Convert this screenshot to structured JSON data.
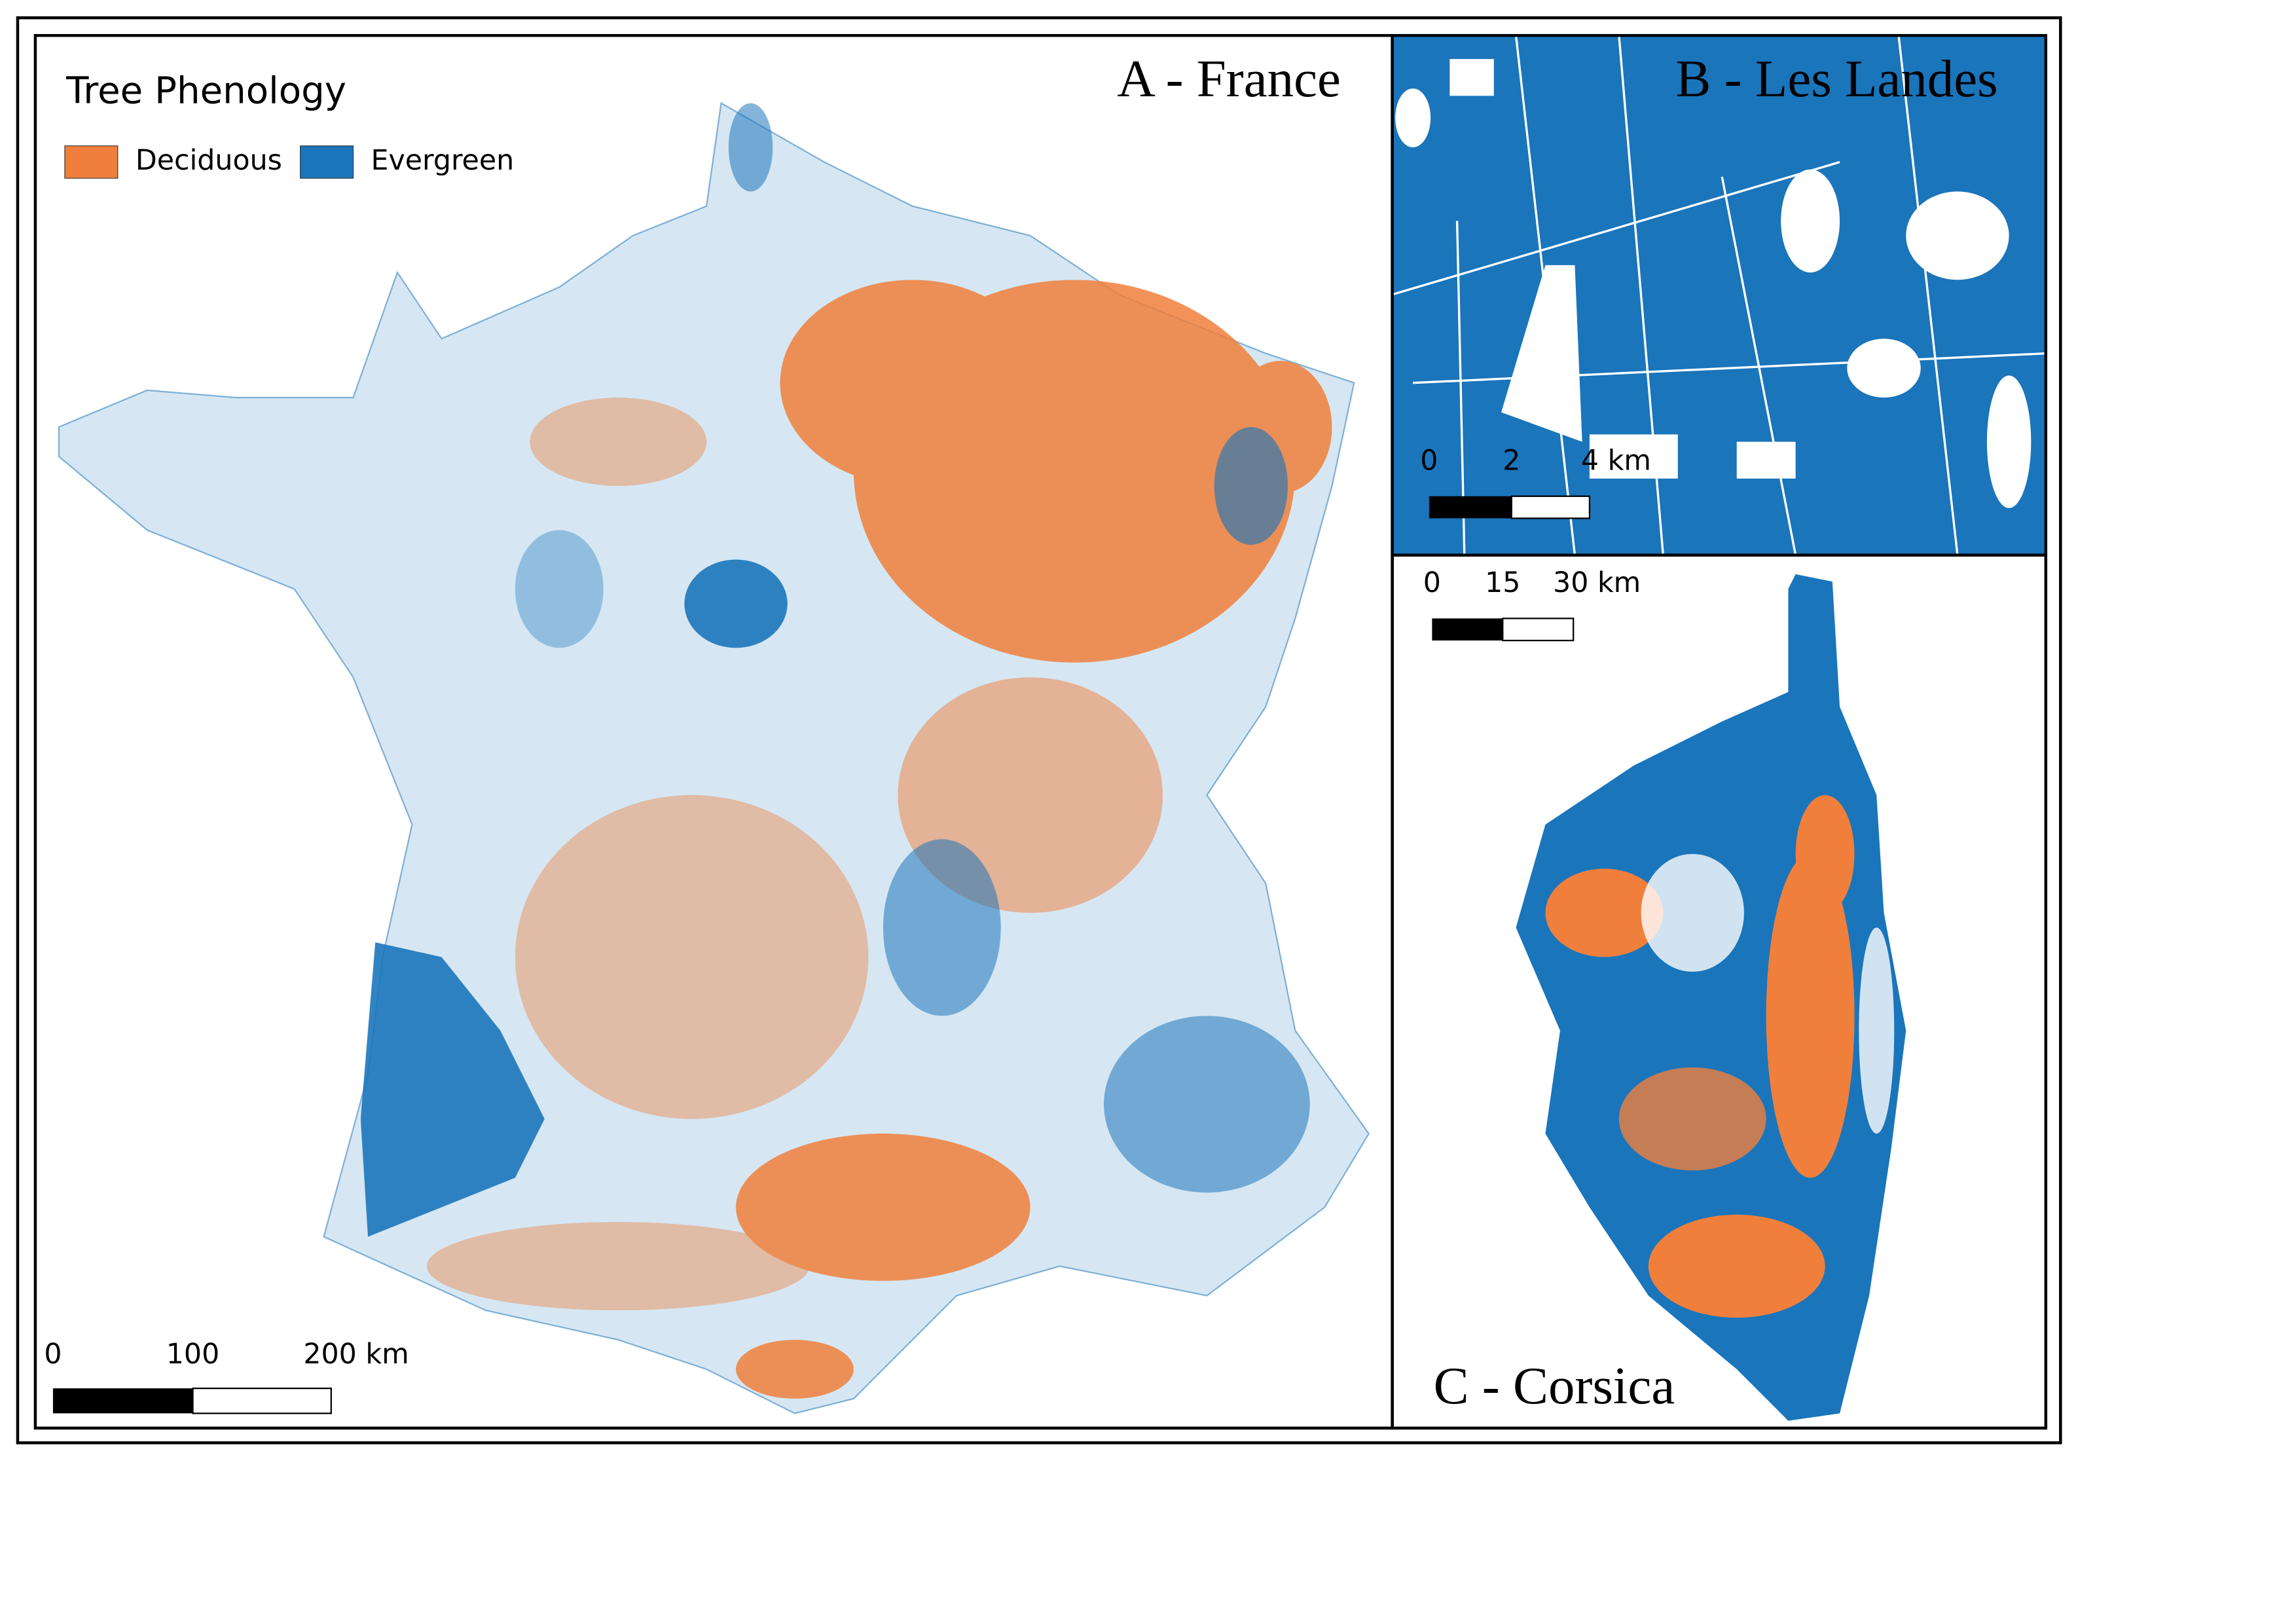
{
  "legend": {
    "title": "Tree Phenology",
    "items": [
      {
        "label": "Deciduous",
        "color": "#f07f3c"
      },
      {
        "label": "Evergreen",
        "color": "#1a75bb"
      }
    ]
  },
  "panels": [
    {
      "title": "A - France",
      "scale_bar": [
        "0",
        "100",
        "200 km"
      ]
    },
    {
      "title": "B - Les Landes",
      "scale_bar": [
        "0",
        "2",
        "4 km"
      ]
    },
    {
      "title": "C - Corsica",
      "scale_bar": [
        "0",
        "15",
        "30 km"
      ]
    }
  ]
}
